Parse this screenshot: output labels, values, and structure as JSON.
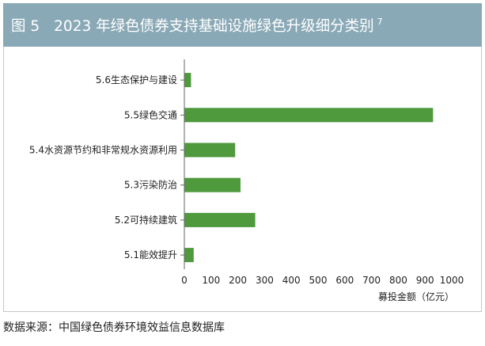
{
  "title": {
    "figure_number": "图 5",
    "text": "2023 年绿色债券支持基础设施绿色升级细分类别",
    "note_ref": "7"
  },
  "source": "数据来源：中国绿色债券环境效益信息数据库",
  "colors": {
    "bar": "#4e9a3c",
    "title_background": "#8aa9b7",
    "axis": "#666666",
    "text": "#222222"
  },
  "chart_data": {
    "type": "bar",
    "orientation": "horizontal",
    "categories": [
      "5.6生态保护与建设",
      "5.5绿色交通",
      "5.4水资源节约和非常规水资源利用",
      "5.3污染防治",
      "5.2可持续建筑",
      "5.1能效提升"
    ],
    "values": [
      25,
      930,
      190,
      210,
      265,
      35
    ],
    "xlabel": "募投金额（亿元）",
    "ylabel": "",
    "xlim": [
      0,
      1000
    ],
    "xticks": [
      "0",
      "100",
      "200",
      "300",
      "400",
      "500",
      "600",
      "700",
      "800",
      "900",
      "1000"
    ],
    "grid": false,
    "legend": "none"
  }
}
